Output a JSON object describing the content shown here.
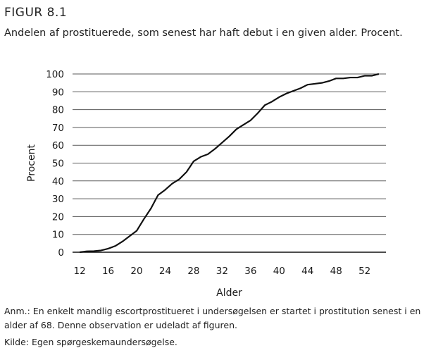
{
  "figure": {
    "label": "FIGUR 8.1",
    "title": "Andelen af prostituerede, som senest har haft debut i en given alder. Procent."
  },
  "notes": {
    "line1": "Anm.: En enkelt mandlig escortprostitueret i undersøgelsen er startet i prostitution senest i en",
    "line2": "alder af 68. Denne observation er udeladt af figuren.",
    "source": "Kilde: Egen spørgeskemaundersøgelse."
  },
  "chart_data": {
    "type": "line",
    "title": "",
    "xlabel": "Alder",
    "ylabel": "Procent",
    "xlim": [
      11,
      55
    ],
    "ylim": [
      0,
      100
    ],
    "xticks": [
      12,
      16,
      20,
      24,
      28,
      32,
      36,
      40,
      44,
      48,
      52
    ],
    "yticks": [
      0,
      10,
      20,
      30,
      40,
      50,
      60,
      70,
      80,
      90,
      100
    ],
    "grid": "horizontal",
    "legend": "none",
    "line_color": "#111111",
    "series": [
      {
        "x": [
          12,
          13,
          14,
          15,
          16,
          17,
          18,
          19,
          20,
          21,
          22,
          23,
          24,
          25,
          26,
          27,
          28,
          29,
          30,
          31,
          32,
          33,
          34,
          35,
          36,
          37,
          38,
          39,
          40,
          41,
          42,
          43,
          44,
          45,
          46,
          47,
          48,
          49,
          50,
          51,
          52,
          53,
          54
        ],
        "y": [
          0,
          0.5,
          0.6,
          1,
          2,
          3.5,
          6,
          9,
          12,
          18.5,
          24.5,
          32,
          35,
          38.5,
          41,
          45,
          51,
          53.5,
          55,
          58,
          61.5,
          65,
          69,
          71.5,
          74,
          78,
          82.5,
          84.5,
          87,
          89,
          90.5,
          92,
          94,
          94.5,
          95,
          96,
          97.5,
          97.5,
          98,
          98,
          99,
          99,
          100
        ]
      }
    ]
  }
}
